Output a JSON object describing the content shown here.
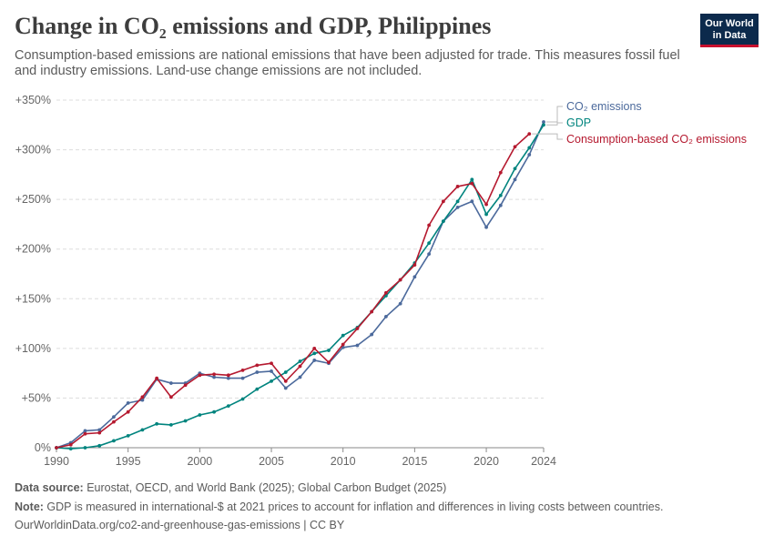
{
  "header": {
    "title": "Change in CO₂ emissions and GDP, Philippines",
    "subtitle": "Consumption-based emissions are national emissions that have been adjusted for trade. This measures fossil fuel and industry emissions. Land-use change emissions are not included."
  },
  "logo": {
    "line1": "Our World",
    "line2": "in Data"
  },
  "footer": {
    "source_label": "Data source:",
    "source_text": " Eurostat, OECD, and World Bank (2025); Global Carbon Budget (2025)",
    "note_label": "Note:",
    "note_text": " GDP is measured in international-$ at 2021 prices to account for inflation and differences in living costs between countries.",
    "url": "OurWorldinData.org/co2-and-greenhouse-gas-emissions | CC BY"
  },
  "chart_data": {
    "type": "line",
    "ylim": [
      0,
      350
    ],
    "xlim": [
      1990,
      2024
    ],
    "y_ticks": [
      0,
      50,
      100,
      150,
      200,
      250,
      300,
      350
    ],
    "y_tick_labels": [
      "0%",
      "+50%",
      "+100%",
      "+150%",
      "+200%",
      "+250%",
      "+300%",
      "+350%"
    ],
    "x_ticks": [
      1990,
      1995,
      2000,
      2005,
      2010,
      2015,
      2020,
      2024
    ],
    "x_tick_labels": [
      "1990",
      "1995",
      "2000",
      "2005",
      "2010",
      "2015",
      "2020",
      "2024"
    ],
    "grid": "horizontal dashed",
    "legend": "right, inline labels",
    "series": [
      {
        "name": "CO₂ emissions",
        "color": "#4c6a9c",
        "x": [
          1990,
          1991,
          1992,
          1993,
          1994,
          1995,
          1996,
          1997,
          1998,
          1999,
          2000,
          2001,
          2002,
          2003,
          2004,
          2005,
          2006,
          2007,
          2008,
          2009,
          2010,
          2011,
          2012,
          2013,
          2014,
          2015,
          2016,
          2017,
          2018,
          2019,
          2020,
          2021,
          2022,
          2023,
          2024
        ],
        "values": [
          0,
          5,
          17,
          18,
          31,
          45,
          48,
          69,
          65,
          65,
          75,
          71,
          70,
          70,
          76,
          77,
          60,
          71,
          88,
          85,
          101,
          103,
          114,
          132,
          145,
          172,
          195,
          228,
          242,
          248,
          222,
          244,
          270,
          295,
          328
        ]
      },
      {
        "name": "GDP",
        "color": "#00847e",
        "x": [
          1990,
          1991,
          1992,
          1993,
          1994,
          1995,
          1996,
          1997,
          1998,
          1999,
          2000,
          2001,
          2002,
          2003,
          2004,
          2005,
          2006,
          2007,
          2008,
          2009,
          2010,
          2011,
          2012,
          2013,
          2014,
          2015,
          2016,
          2017,
          2018,
          2019,
          2020,
          2021,
          2022,
          2023,
          2024
        ],
        "values": [
          0,
          -1,
          0,
          2,
          7,
          12,
          18,
          24,
          23,
          27,
          33,
          36,
          42,
          49,
          59,
          67,
          76,
          87,
          95,
          98,
          113,
          121,
          137,
          153,
          169,
          186,
          206,
          228,
          248,
          270,
          235,
          254,
          281,
          302,
          325
        ]
      },
      {
        "name": "Consumption-based CO₂ emissions",
        "color": "#b5192f",
        "x": [
          1990,
          1991,
          1992,
          1993,
          1994,
          1995,
          1996,
          1997,
          1998,
          1999,
          2000,
          2001,
          2002,
          2003,
          2004,
          2005,
          2006,
          2007,
          2008,
          2009,
          2010,
          2011,
          2012,
          2013,
          2014,
          2015,
          2016,
          2017,
          2018,
          2019,
          2020,
          2021,
          2022,
          2023
        ],
        "values": [
          0,
          3,
          14,
          15,
          26,
          36,
          51,
          70,
          51,
          63,
          73,
          74,
          73,
          78,
          83,
          85,
          67,
          82,
          100,
          86,
          104,
          120,
          137,
          156,
          169,
          184,
          224,
          248,
          263,
          266,
          245,
          277,
          303,
          316
        ]
      }
    ]
  }
}
